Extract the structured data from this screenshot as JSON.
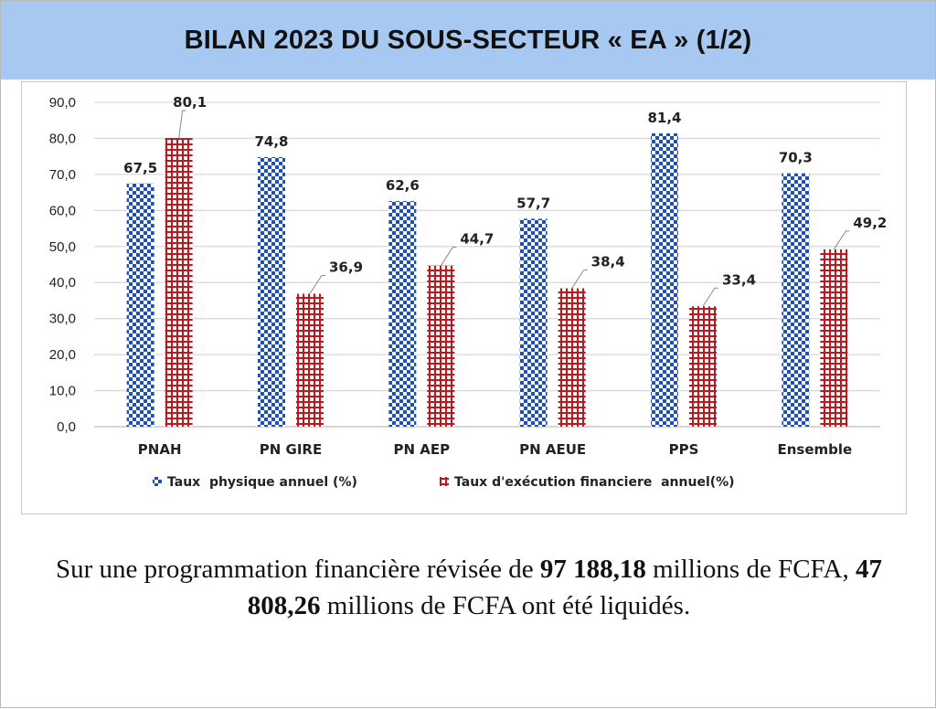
{
  "header": {
    "title": "BILAN 2023 DU SOUS-SECTEUR « EA » (1/2)"
  },
  "colors": {
    "series1": "#1f4fbf",
    "series2": "#c0161c",
    "header_bg": "#a7c8f0"
  },
  "chart_data": {
    "type": "bar",
    "categories": [
      "PNAH",
      "PN GIRE",
      "PN AEP",
      "PN AEUE",
      "PPS",
      "Ensemble"
    ],
    "series": [
      {
        "name": "Taux  physique annuel (%)",
        "values": [
          67.5,
          74.8,
          62.6,
          57.7,
          81.4,
          70.3
        ],
        "pattern": "checkerboard"
      },
      {
        "name": "Taux d'exécution financiere  annuel(%)",
        "values": [
          80.1,
          36.9,
          44.7,
          38.4,
          33.4,
          49.2
        ],
        "pattern": "grid"
      }
    ],
    "data_labels": [
      [
        "67,5",
        "74,8",
        "62,6",
        "57,7",
        "81,4",
        "70,3"
      ],
      [
        "80,1",
        "36,9",
        "44,7",
        "38,4",
        "33,4",
        "49,2"
      ]
    ],
    "y_ticks": [
      "0,0",
      "10,0",
      "20,0",
      "30,0",
      "40,0",
      "50,0",
      "60,0",
      "70,0",
      "80,0",
      "90,0"
    ],
    "ylim": [
      0,
      90
    ],
    "grid": true,
    "legend_position": "bottom"
  },
  "caption": {
    "part1": "Sur une programmation financière révisée de ",
    "amount1": "97 188,18",
    "part2": " millions de FCFA, ",
    "amount2": "47 808,26",
    "part3": " millions de FCFA ont été liquidés."
  }
}
